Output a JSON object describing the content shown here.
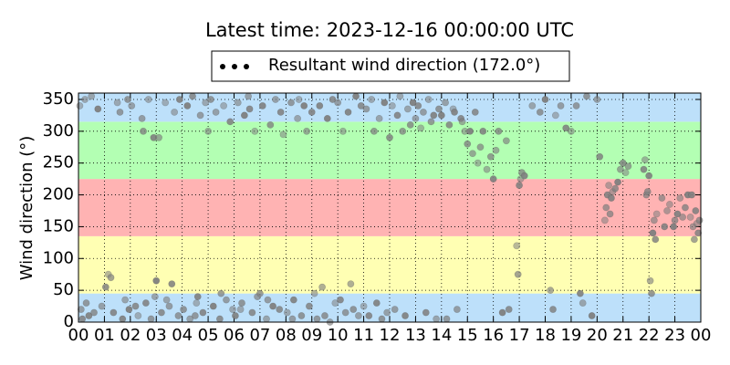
{
  "chart_data": {
    "type": "scatter",
    "title": "Latest time: 2023-12-16 00:00:00 UTC",
    "y_label": "Wind direction (°)",
    "xlim": [
      0,
      24
    ],
    "ylim": [
      0,
      360
    ],
    "xticks": [
      {
        "value": 0,
        "label": "00"
      },
      {
        "value": 1,
        "label": "01"
      },
      {
        "value": 2,
        "label": "02"
      },
      {
        "value": 3,
        "label": "03"
      },
      {
        "value": 4,
        "label": "04"
      },
      {
        "value": 5,
        "label": "05"
      },
      {
        "value": 6,
        "label": "06"
      },
      {
        "value": 7,
        "label": "07"
      },
      {
        "value": 8,
        "label": "08"
      },
      {
        "value": 9,
        "label": "09"
      },
      {
        "value": 10,
        "label": "10"
      },
      {
        "value": 11,
        "label": "11"
      },
      {
        "value": 12,
        "label": "12"
      },
      {
        "value": 13,
        "label": "13"
      },
      {
        "value": 14,
        "label": "14"
      },
      {
        "value": 15,
        "label": "15"
      },
      {
        "value": 16,
        "label": "16"
      },
      {
        "value": 17,
        "label": "17"
      },
      {
        "value": 18,
        "label": "18"
      },
      {
        "value": 19,
        "label": "19"
      },
      {
        "value": 20,
        "label": "20"
      },
      {
        "value": 21,
        "label": "21"
      },
      {
        "value": 22,
        "label": "22"
      },
      {
        "value": 23,
        "label": "23"
      },
      {
        "value": 24,
        "label": "00"
      }
    ],
    "yticks": [
      0,
      50,
      100,
      150,
      200,
      250,
      300,
      350
    ],
    "grid": true,
    "bands": [
      {
        "from": 0,
        "to": 45,
        "color": "#bde0fa"
      },
      {
        "from": 45,
        "to": 135,
        "color": "#ffffb3"
      },
      {
        "from": 135,
        "to": 225,
        "color": "#ffb3b3"
      },
      {
        "from": 225,
        "to": 315,
        "color": "#b3ffb3"
      },
      {
        "from": 315,
        "to": 360,
        "color": "#bde0fa"
      }
    ],
    "legend": "top",
    "x": [
      0.05,
      0.1,
      0.15,
      0.25,
      0.3,
      0.4,
      0.5,
      0.6,
      0.75,
      0.9,
      1.05,
      1.15,
      1.25,
      1.35,
      1.5,
      1.6,
      1.7,
      1.8,
      1.9,
      1.95,
      2.05,
      2.2,
      2.3,
      2.45,
      2.6,
      2.7,
      2.8,
      2.9,
      2.95,
      2.5,
      3.0,
      3.1,
      3.2,
      3.35,
      3.5,
      3.6,
      3.7,
      3.85,
      3.9,
      3.4,
      4.05,
      4.2,
      4.3,
      4.4,
      4.55,
      4.7,
      4.8,
      4.9,
      4.5,
      4.6,
      5.0,
      5.1,
      5.2,
      5.3,
      5.45,
      5.6,
      5.7,
      5.85,
      5.95,
      5.5,
      6.05,
      6.15,
      6.3,
      6.4,
      6.55,
      6.7,
      6.8,
      6.9,
      6.6,
      6.25,
      7.0,
      7.1,
      7.25,
      7.4,
      7.5,
      7.6,
      7.75,
      7.9,
      7.3,
      7.8,
      8.05,
      8.2,
      8.3,
      8.45,
      8.6,
      8.7,
      8.8,
      8.9,
      8.5,
      8.25,
      9.0,
      9.1,
      9.2,
      9.3,
      9.4,
      9.5,
      9.6,
      9.7,
      9.8,
      9.9,
      10.0,
      10.1,
      10.2,
      10.3,
      10.4,
      10.5,
      10.6,
      10.7,
      10.8,
      10.9,
      11.0,
      11.1,
      11.2,
      11.3,
      11.4,
      11.5,
      11.6,
      11.7,
      11.8,
      11.9,
      12.0,
      12.1,
      12.2,
      12.3,
      12.4,
      12.5,
      12.6,
      12.7,
      12.8,
      12.9,
      13.0,
      13.1,
      13.2,
      13.3,
      13.4,
      13.5,
      13.6,
      13.7,
      13.8,
      13.9,
      14.0,
      14.15,
      14.3,
      14.45,
      14.6,
      14.75,
      14.9,
      14.2,
      14.5,
      14.8,
      15.0,
      15.1,
      15.2,
      15.3,
      15.4,
      15.5,
      15.6,
      15.75,
      15.9,
      16.0,
      16.1,
      16.2,
      16.35,
      16.5,
      16.6,
      16.9,
      16.95,
      17.0,
      17.05,
      17.1,
      17.2,
      17.5,
      17.8,
      18.0,
      18.2,
      18.3,
      18.4,
      18.6,
      18.8,
      19.0,
      19.2,
      19.35,
      19.45,
      19.6,
      19.8,
      20.0,
      20.1,
      20.3,
      20.35,
      20.4,
      20.45,
      20.5,
      20.55,
      20.6,
      20.7,
      20.8,
      20.9,
      21.0,
      21.1,
      21.2,
      21.8,
      21.85,
      21.9,
      22.0,
      22.05,
      22.1,
      22.15,
      22.2,
      22.25,
      22.3,
      22.5,
      22.6,
      22.8,
      23.0,
      23.1,
      23.2,
      23.4,
      23.5,
      23.7,
      23.9,
      23.6,
      23.75,
      23.8,
      23.85,
      23.95,
      23.65,
      22.7,
      21.95,
      22.95,
      23.3
    ],
    "series": [
      {
        "name": "Resultant wind direction (172.0°)",
        "color": "#808080",
        "values": [
          340,
          20,
          5,
          350,
          30,
          10,
          355,
          15,
          335,
          25,
          55,
          75,
          70,
          15,
          345,
          330,
          5,
          35,
          350,
          20,
          340,
          25,
          10,
          320,
          30,
          350,
          5,
          290,
          40,
          300,
          65,
          290,
          15,
          345,
          25,
          60,
          330,
          10,
          350,
          35,
          20,
          340,
          5,
          355,
          30,
          325,
          15,
          345,
          10,
          40,
          300,
          350,
          25,
          330,
          5,
          340,
          35,
          315,
          20,
          45,
          10,
          345,
          30,
          325,
          355,
          15,
          300,
          40,
          335,
          20,
          45,
          340,
          5,
          310,
          25,
          350,
          20,
          295,
          35,
          330,
          15,
          345,
          35,
          320,
          10,
          340,
          300,
          25,
          350,
          5,
          330,
          45,
          5,
          340,
          55,
          10,
          320,
          0,
          350,
          30,
          345,
          35,
          300,
          15,
          330,
          60,
          20,
          355,
          10,
          340,
          25,
          335,
          10,
          350,
          300,
          30,
          320,
          5,
          345,
          15,
          290,
          340,
          20,
          325,
          355,
          300,
          10,
          335,
          310,
          345,
          320,
          340,
          305,
          330,
          15,
          350,
          315,
          325,
          5,
          335,
          325,
          345,
          310,
          335,
          20,
          320,
          300,
          5,
          330,
          315,
          280,
          300,
          265,
          330,
          250,
          275,
          300,
          240,
          260,
          225,
          270,
          300,
          15,
          285,
          20,
          120,
          75,
          215,
          225,
          235,
          230,
          340,
          330,
          350,
          50,
          20,
          325,
          340,
          305,
          300,
          340,
          45,
          30,
          355,
          10,
          350,
          260,
          160,
          180,
          200,
          215,
          170,
          195,
          205,
          210,
          220,
          240,
          250,
          235,
          245,
          240,
          255,
          200,
          230,
          65,
          45,
          140,
          160,
          130,
          170,
          195,
          150,
          185,
          160,
          170,
          195,
          180,
          200,
          150,
          140,
          165,
          130,
          175,
          155,
          160,
          200,
          175,
          205,
          150,
          165
        ]
      }
    ]
  }
}
